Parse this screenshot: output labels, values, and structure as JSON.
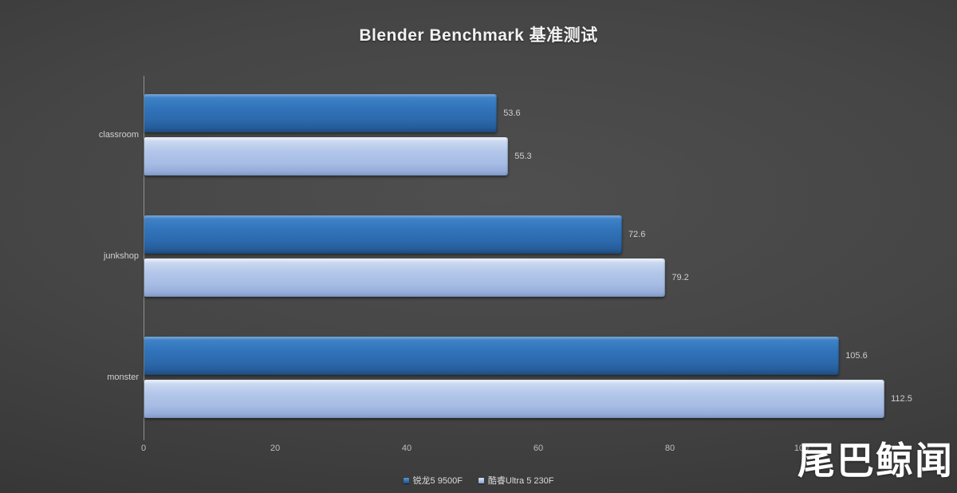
{
  "title": "Blender Benchmark 基准测试",
  "watermark": "尾巴鲸闻",
  "chart_data": {
    "type": "bar",
    "orientation": "horizontal",
    "title": "Blender Benchmark 基准测试",
    "categories": [
      "classroom",
      "junkshop",
      "monster"
    ],
    "series": [
      {
        "name": "锐龙5 9500F",
        "color": "#2f70b6",
        "values": [
          53.6,
          72.6,
          105.6
        ]
      },
      {
        "name": "酷睿Ultra 5 230F",
        "color": "#aec3e8",
        "values": [
          55.3,
          79.2,
          112.5
        ]
      }
    ],
    "xlim": [
      0,
      120
    ],
    "xticks": [
      0,
      20,
      40,
      60,
      80,
      100
    ],
    "value_labels": true,
    "legend_position": "bottom",
    "grid": false,
    "colors": {
      "background_center": "#4a4a4a",
      "background_corner": "#262626",
      "axis_line": "#8f8f8f",
      "tick_text": "#bdbdbd",
      "label_text": "#cfcfcf",
      "title_text": "#f2f2f2"
    }
  }
}
